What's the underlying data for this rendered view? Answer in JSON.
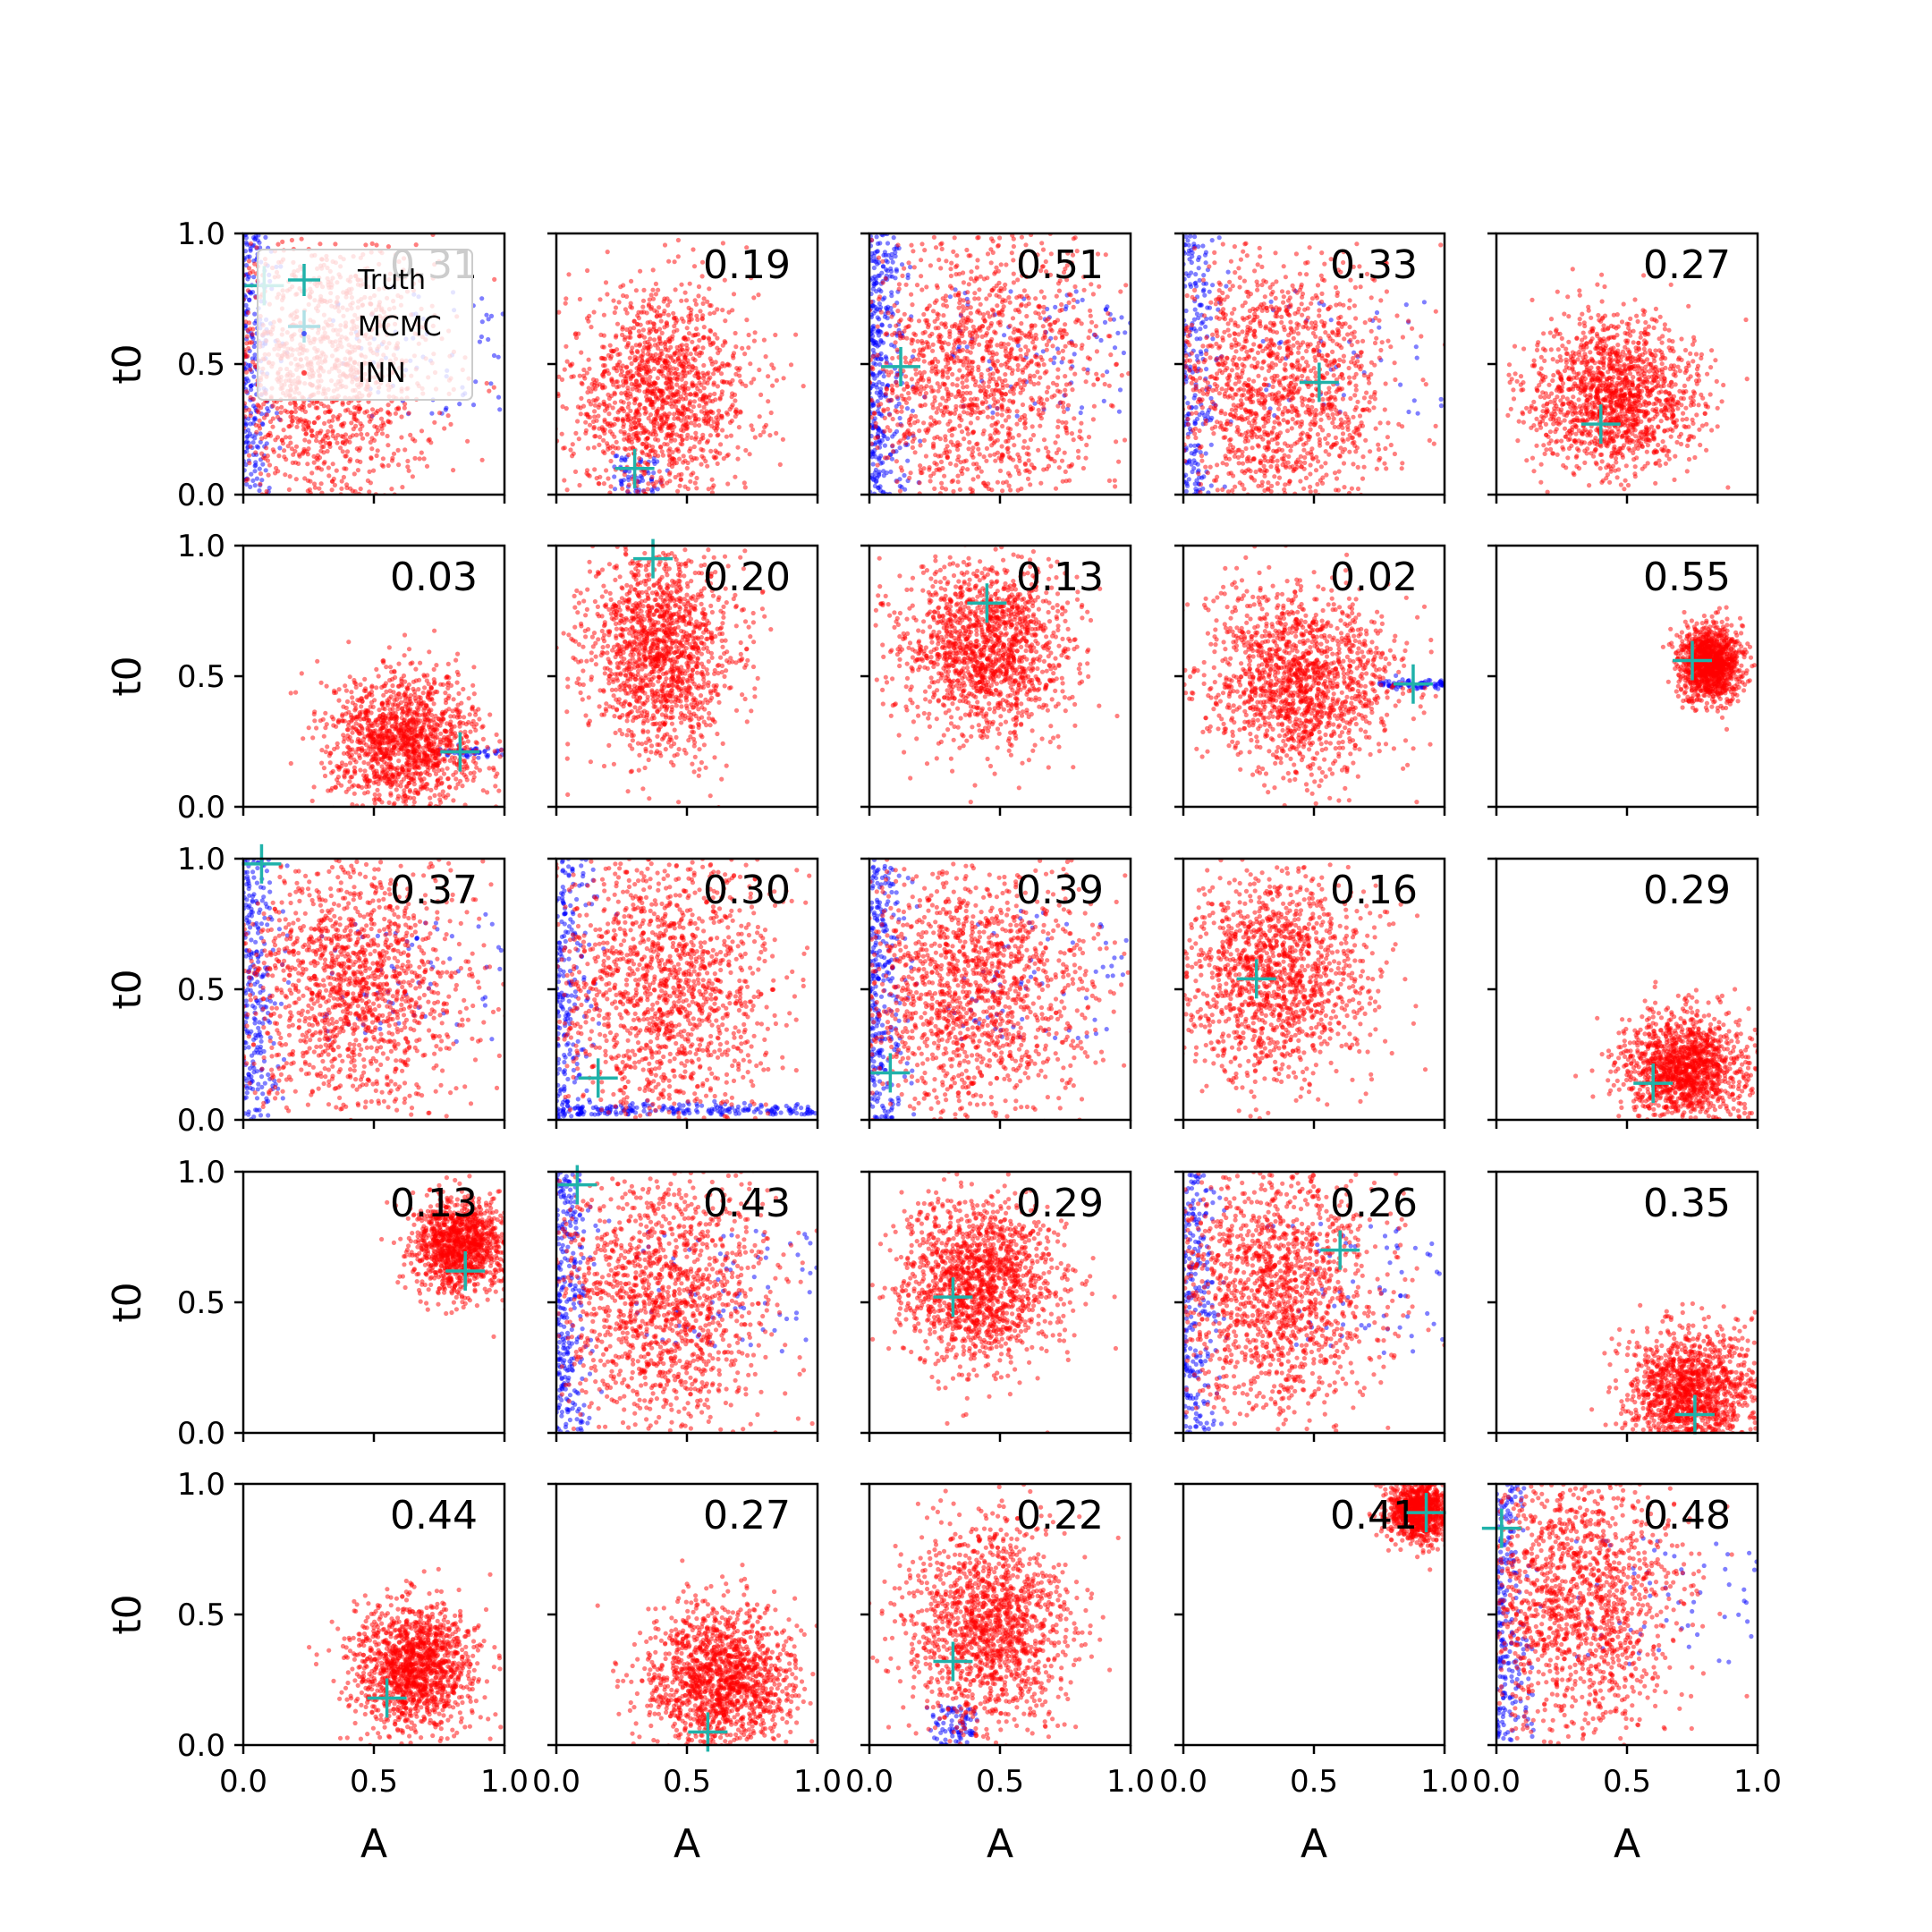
{
  "figure": {
    "colors": {
      "truth": "#20b2aa",
      "mcmc": "#0000ff",
      "inn": "#ff0000",
      "axis": "#000000"
    }
  },
  "chart_data": {
    "type": "scatter",
    "grid": false,
    "rows": 5,
    "cols": 5,
    "xlabel": "A",
    "ylabel": "t0",
    "xlim": [
      0,
      1
    ],
    "ylim": [
      0,
      1
    ],
    "xticks": [
      "0.0",
      "0.5",
      "1.0"
    ],
    "yticks": [
      "0.0",
      "0.5",
      "1.0"
    ],
    "legend": {
      "placement": "top-left of first panel",
      "entries": [
        {
          "label": "Truth",
          "key": "truth"
        },
        {
          "label": "MCMC",
          "key": "mcmc"
        },
        {
          "label": "INN",
          "key": "inn"
        }
      ]
    },
    "panels": [
      {
        "score": "0.31",
        "truth": [
          0.08,
          0.8
        ],
        "inn": {
          "mean": [
            0.3,
            0.45
          ],
          "sd": [
            0.22,
            0.28
          ],
          "n": 1400
        },
        "mcmc": {
          "pattern": "left-edge",
          "n": 300
        }
      },
      {
        "score": "0.19",
        "truth": [
          0.3,
          0.1
        ],
        "inn": {
          "mean": [
            0.4,
            0.38
          ],
          "sd": [
            0.18,
            0.2
          ],
          "n": 1400
        },
        "mcmc": {
          "pattern": "bottom-tail",
          "n": 60
        }
      },
      {
        "score": "0.51",
        "truth": [
          0.12,
          0.49
        ],
        "inn": {
          "mean": [
            0.4,
            0.45
          ],
          "sd": [
            0.25,
            0.28
          ],
          "n": 1500
        },
        "mcmc": {
          "pattern": "left-edge",
          "n": 420
        }
      },
      {
        "score": "0.33",
        "truth": [
          0.52,
          0.43
        ],
        "inn": {
          "mean": [
            0.35,
            0.4
          ],
          "sd": [
            0.22,
            0.26
          ],
          "n": 1500
        },
        "mcmc": {
          "pattern": "left-edge",
          "n": 260
        }
      },
      {
        "score": "0.27",
        "truth": [
          0.4,
          0.27
        ],
        "inn": {
          "mean": [
            0.45,
            0.38
          ],
          "sd": [
            0.16,
            0.15
          ],
          "n": 1500
        },
        "mcmc": {
          "pattern": "none",
          "n": 0
        }
      },
      {
        "score": "0.03",
        "truth": [
          0.83,
          0.21
        ],
        "inn": {
          "mean": [
            0.62,
            0.25
          ],
          "sd": [
            0.14,
            0.13
          ],
          "n": 1400
        },
        "mcmc": {
          "pattern": "right-streak",
          "n": 50
        }
      },
      {
        "score": "0.20",
        "truth": [
          0.37,
          0.95
        ],
        "inn": {
          "mean": [
            0.4,
            0.6
          ],
          "sd": [
            0.14,
            0.2
          ],
          "n": 1500
        },
        "mcmc": {
          "pattern": "none",
          "n": 0
        }
      },
      {
        "score": "0.13",
        "truth": [
          0.45,
          0.78
        ],
        "inn": {
          "mean": [
            0.45,
            0.6
          ],
          "sd": [
            0.16,
            0.17
          ],
          "n": 1500
        },
        "mcmc": {
          "pattern": "none",
          "n": 0
        }
      },
      {
        "score": "0.02",
        "truth": [
          0.88,
          0.47
        ],
        "inn": {
          "mean": [
            0.45,
            0.48
          ],
          "sd": [
            0.18,
            0.17
          ],
          "n": 1500
        },
        "mcmc": {
          "pattern": "right-streak",
          "n": 80
        }
      },
      {
        "score": "0.55",
        "truth": [
          0.75,
          0.56
        ],
        "inn": {
          "mean": [
            0.82,
            0.55
          ],
          "sd": [
            0.06,
            0.07
          ],
          "n": 1200
        },
        "mcmc": {
          "pattern": "none",
          "n": 0
        }
      },
      {
        "score": "0.37",
        "truth": [
          0.07,
          0.98
        ],
        "inn": {
          "mean": [
            0.42,
            0.5
          ],
          "sd": [
            0.22,
            0.25
          ],
          "n": 1500
        },
        "mcmc": {
          "pattern": "left-edge",
          "n": 320
        }
      },
      {
        "score": "0.30",
        "truth": [
          0.16,
          0.16
        ],
        "inn": {
          "mean": [
            0.4,
            0.5
          ],
          "sd": [
            0.22,
            0.27
          ],
          "n": 1500
        },
        "mcmc": {
          "pattern": "left-bottom",
          "n": 420
        }
      },
      {
        "score": "0.39",
        "truth": [
          0.08,
          0.18
        ],
        "inn": {
          "mean": [
            0.4,
            0.5
          ],
          "sd": [
            0.22,
            0.26
          ],
          "n": 1500
        },
        "mcmc": {
          "pattern": "left-edge",
          "n": 360
        }
      },
      {
        "score": "0.16",
        "truth": [
          0.28,
          0.54
        ],
        "inn": {
          "mean": [
            0.35,
            0.55
          ],
          "sd": [
            0.18,
            0.2
          ],
          "n": 1400
        },
        "mcmc": {
          "pattern": "none",
          "n": 0
        }
      },
      {
        "score": "0.29",
        "truth": [
          0.6,
          0.14
        ],
        "inn": {
          "mean": [
            0.72,
            0.2
          ],
          "sd": [
            0.12,
            0.1
          ],
          "n": 1400
        },
        "mcmc": {
          "pattern": "none",
          "n": 0
        }
      },
      {
        "score": "0.13",
        "truth": [
          0.85,
          0.62
        ],
        "inn": {
          "mean": [
            0.82,
            0.72
          ],
          "sd": [
            0.09,
            0.09
          ],
          "n": 1200
        },
        "mcmc": {
          "pattern": "none",
          "n": 0
        }
      },
      {
        "score": "0.43",
        "truth": [
          0.08,
          0.95
        ],
        "inn": {
          "mean": [
            0.4,
            0.5
          ],
          "sd": [
            0.22,
            0.26
          ],
          "n": 1500
        },
        "mcmc": {
          "pattern": "left-edge",
          "n": 360
        }
      },
      {
        "score": "0.29",
        "truth": [
          0.32,
          0.52
        ],
        "inn": {
          "mean": [
            0.42,
            0.58
          ],
          "sd": [
            0.15,
            0.16
          ],
          "n": 1500
        },
        "mcmc": {
          "pattern": "none",
          "n": 0
        }
      },
      {
        "score": "0.26",
        "truth": [
          0.6,
          0.7
        ],
        "inn": {
          "mean": [
            0.35,
            0.55
          ],
          "sd": [
            0.2,
            0.24
          ],
          "n": 1500
        },
        "mcmc": {
          "pattern": "left-edge",
          "n": 300
        }
      },
      {
        "score": "0.35",
        "truth": [
          0.76,
          0.07
        ],
        "inn": {
          "mean": [
            0.75,
            0.15
          ],
          "sd": [
            0.12,
            0.12
          ],
          "n": 1400
        },
        "mcmc": {
          "pattern": "none",
          "n": 0
        }
      },
      {
        "score": "0.44",
        "truth": [
          0.55,
          0.18
        ],
        "inn": {
          "mean": [
            0.65,
            0.3
          ],
          "sd": [
            0.11,
            0.12
          ],
          "n": 1400
        },
        "mcmc": {
          "pattern": "none",
          "n": 0
        }
      },
      {
        "score": "0.27",
        "truth": [
          0.58,
          0.05
        ],
        "inn": {
          "mean": [
            0.62,
            0.25
          ],
          "sd": [
            0.14,
            0.14
          ],
          "n": 1500
        },
        "mcmc": {
          "pattern": "none",
          "n": 0
        }
      },
      {
        "score": "0.22",
        "truth": [
          0.32,
          0.32
        ],
        "inn": {
          "mean": [
            0.45,
            0.45
          ],
          "sd": [
            0.16,
            0.2
          ],
          "n": 1500
        },
        "mcmc": {
          "pattern": "bottom-tail",
          "n": 80
        }
      },
      {
        "score": "0.41",
        "truth": [
          0.93,
          0.89
        ],
        "inn": {
          "mean": [
            0.9,
            0.9
          ],
          "sd": [
            0.06,
            0.06
          ],
          "n": 1000
        },
        "mcmc": {
          "pattern": "none",
          "n": 0
        }
      },
      {
        "score": "0.48",
        "truth": [
          0.02,
          0.83
        ],
        "inn": {
          "mean": [
            0.3,
            0.55
          ],
          "sd": [
            0.2,
            0.25
          ],
          "n": 1500
        },
        "mcmc": {
          "pattern": "left-edge",
          "n": 300
        }
      }
    ]
  }
}
